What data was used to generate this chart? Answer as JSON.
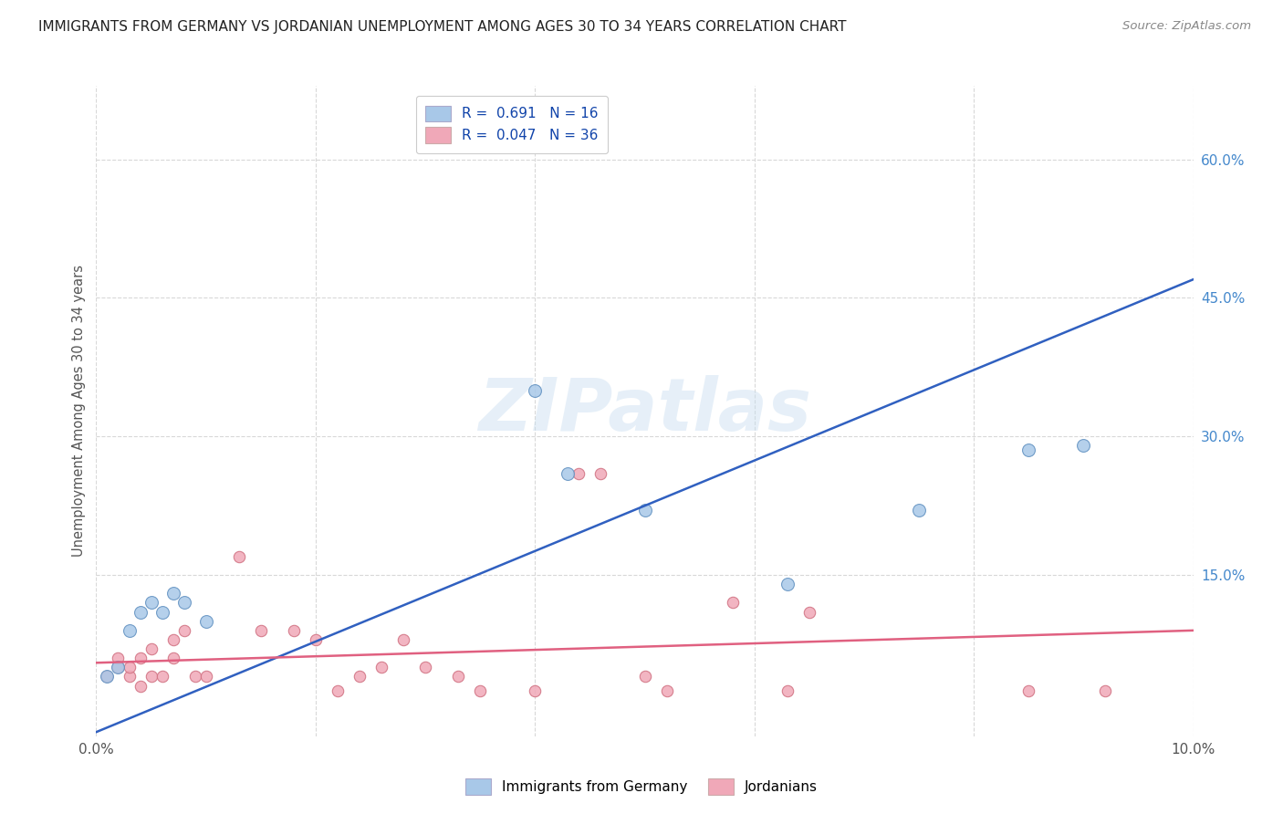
{
  "title": "IMMIGRANTS FROM GERMANY VS JORDANIAN UNEMPLOYMENT AMONG AGES 30 TO 34 YEARS CORRELATION CHART",
  "source": "Source: ZipAtlas.com",
  "ylabel": "Unemployment Among Ages 30 to 34 years",
  "xlim": [
    0.0,
    0.1
  ],
  "ylim": [
    -0.025,
    0.68
  ],
  "right_yticks": [
    0.0,
    0.15,
    0.3,
    0.45,
    0.6
  ],
  "right_yticklabels": [
    "",
    "15.0%",
    "30.0%",
    "45.0%",
    "60.0%"
  ],
  "xticks": [
    0.0,
    0.02,
    0.04,
    0.06,
    0.08,
    0.1
  ],
  "xticklabels": [
    "0.0%",
    "",
    "",
    "",
    "",
    "10.0%"
  ],
  "legend_r1_r": "0.691",
  "legend_r1_n": "16",
  "legend_r2_r": "0.047",
  "legend_r2_n": "36",
  "blue_color": "#a8c8e8",
  "pink_color": "#f0a8b8",
  "blue_edge_color": "#6090c0",
  "pink_edge_color": "#d07080",
  "blue_line_color": "#3060c0",
  "pink_line_color": "#e06080",
  "watermark_text": "ZIPatlas",
  "blue_x": [
    0.001,
    0.002,
    0.003,
    0.004,
    0.005,
    0.006,
    0.007,
    0.008,
    0.01,
    0.04,
    0.043,
    0.05,
    0.063,
    0.075,
    0.085,
    0.09
  ],
  "blue_y": [
    0.04,
    0.05,
    0.09,
    0.11,
    0.12,
    0.11,
    0.13,
    0.12,
    0.1,
    0.35,
    0.26,
    0.22,
    0.14,
    0.22,
    0.285,
    0.29
  ],
  "pink_x": [
    0.001,
    0.002,
    0.002,
    0.003,
    0.003,
    0.004,
    0.004,
    0.005,
    0.005,
    0.006,
    0.007,
    0.007,
    0.008,
    0.009,
    0.01,
    0.013,
    0.015,
    0.018,
    0.02,
    0.022,
    0.024,
    0.026,
    0.028,
    0.03,
    0.033,
    0.035,
    0.04,
    0.044,
    0.046,
    0.05,
    0.052,
    0.058,
    0.063,
    0.065,
    0.085,
    0.092
  ],
  "pink_y": [
    0.04,
    0.05,
    0.06,
    0.04,
    0.05,
    0.03,
    0.06,
    0.04,
    0.07,
    0.04,
    0.06,
    0.08,
    0.09,
    0.04,
    0.04,
    0.17,
    0.09,
    0.09,
    0.08,
    0.025,
    0.04,
    0.05,
    0.08,
    0.05,
    0.04,
    0.025,
    0.025,
    0.26,
    0.26,
    0.04,
    0.025,
    0.12,
    0.025,
    0.11,
    0.025,
    0.025
  ],
  "blue_marker_size": 100,
  "pink_marker_size": 80,
  "grid_color": "#d8d8d8",
  "background_color": "#ffffff",
  "blue_line_intercept": -0.02,
  "blue_line_slope": 4.9,
  "pink_line_intercept": 0.055,
  "pink_line_slope": 0.35
}
